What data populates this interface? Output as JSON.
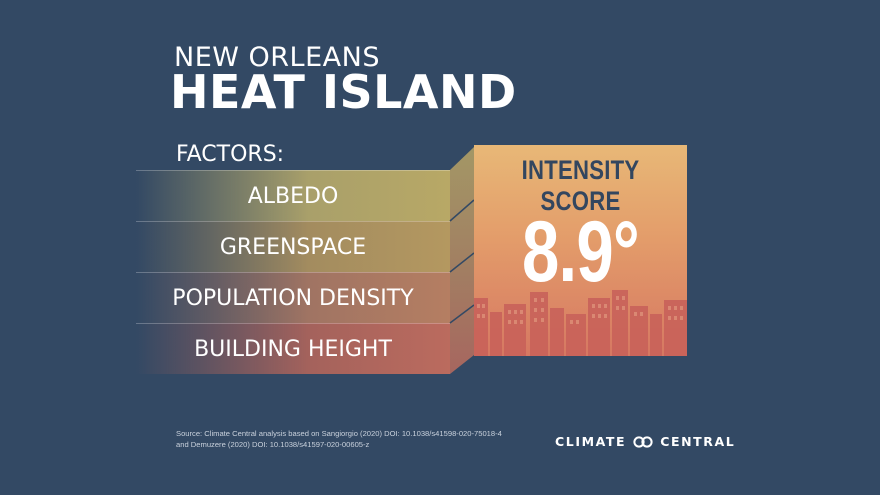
{
  "header": {
    "subtitle": "NEW ORLEANS",
    "title": "HEAT ISLAND"
  },
  "factors": {
    "label": "FACTORS:",
    "items": [
      "ALBEDO",
      "GREENSPACE",
      "POPULATION DENSITY",
      "BUILDING HEIGHT"
    ]
  },
  "score_card": {
    "title": "INTENSITY SCORE",
    "score": "8.9°"
  },
  "footer": {
    "source_line1": "Source: Climate Central analysis based on Sangiorgio (2020) DOI: 10.1038/s41598-020-75018-4",
    "source_line2": "and Demuzere (2020) DOI: 10.1038/s41597-020-00605-z",
    "brand_left": "CLIMATE",
    "brand_right": "CENTRAL",
    "brand_logo_icon": "linked-rings-icon"
  },
  "colors": {
    "background": "#334964",
    "card_top": "#e8b877",
    "card_bottom": "#d67862",
    "card_title": "#33465f"
  }
}
